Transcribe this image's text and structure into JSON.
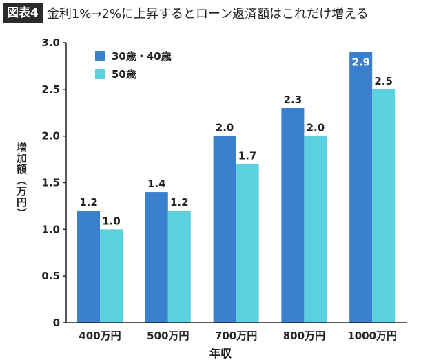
{
  "header": {
    "badge": "図表4",
    "title": "金利1%→2%に上昇するとローン返済額はこれだけ増える"
  },
  "colors": {
    "series1": "#3b7fcf",
    "series2": "#5bd0de",
    "axis": "#222222"
  },
  "chart_data": {
    "type": "bar",
    "categories": [
      "400万円",
      "500万円",
      "700万円",
      "800万円",
      "1000万円"
    ],
    "series": [
      {
        "name": "30歳・40歳",
        "values": [
          1.2,
          1.4,
          2.0,
          2.3,
          2.9
        ],
        "labels": [
          "1.2",
          "1.4",
          "2.0",
          "2.3",
          "2.9"
        ]
      },
      {
        "name": "50歳",
        "values": [
          1.0,
          1.2,
          1.7,
          2.0,
          2.5
        ],
        "labels": [
          "1.0",
          "1.2",
          "1.7",
          "2.0",
          "2.5"
        ]
      }
    ],
    "xlabel": "年収",
    "ylabel": "増加額（万円）",
    "ylim": [
      0,
      3.0
    ],
    "yticks": [
      "0",
      "0.5",
      "1.0",
      "1.5",
      "2.0",
      "2.5",
      "3.0"
    ],
    "grid": false,
    "legend": "top-left"
  }
}
